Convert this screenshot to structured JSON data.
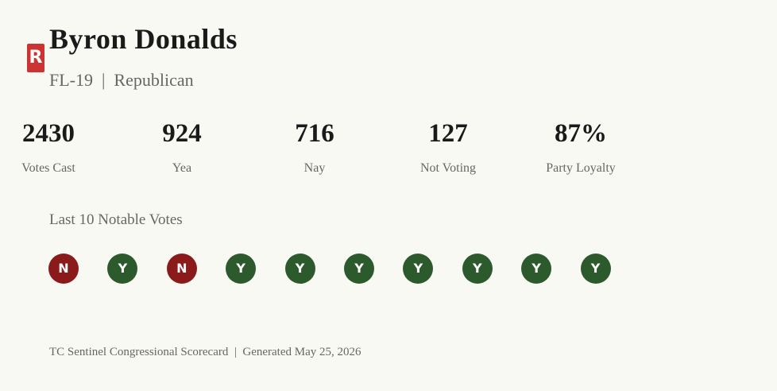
{
  "header": {
    "badge": "R",
    "name": "Byron Donalds",
    "subtitle": "FL-19  |  Republican"
  },
  "stats": [
    {
      "value": "2430",
      "label": "Votes Cast"
    },
    {
      "value": "924",
      "label": "Yea"
    },
    {
      "value": "716",
      "label": "Nay"
    },
    {
      "value": "127",
      "label": "Not Voting"
    },
    {
      "value": "87%",
      "label": "Party Loyalty"
    }
  ],
  "votes_title": "Last 10 Notable Votes",
  "votes": [
    "N",
    "Y",
    "N",
    "Y",
    "Y",
    "Y",
    "Y",
    "Y",
    "Y",
    "Y"
  ],
  "footer": "TC Sentinel Congressional Scorecard  |  Generated May 25, 2026"
}
